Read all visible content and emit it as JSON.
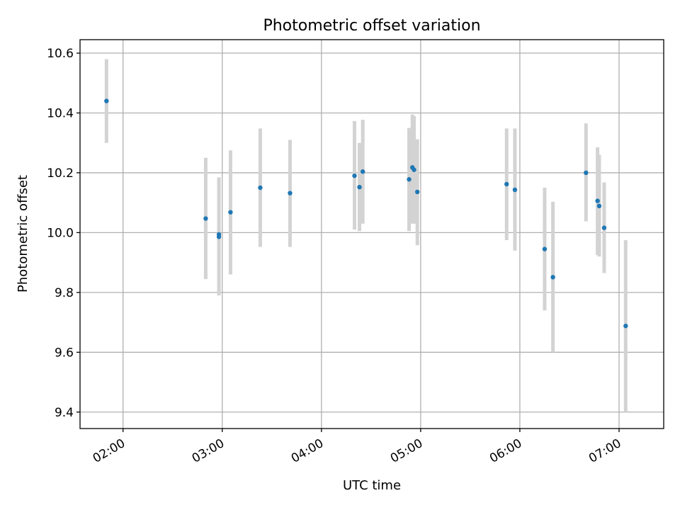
{
  "chart_data": {
    "type": "scatter",
    "title": "Photometric offset variation",
    "xlabel": "UTC time",
    "ylabel": "Photometric offset",
    "x_ticks": [
      "02:00",
      "03:00",
      "04:00",
      "05:00",
      "06:00",
      "07:00"
    ],
    "y_ticks": [
      "9.4",
      "9.6",
      "9.8",
      "10.0",
      "10.2",
      "10.4",
      "10.6"
    ],
    "xlim": [
      "01:34",
      "07:27"
    ],
    "ylim": [
      9.345,
      10.645
    ],
    "grid": true,
    "marker_color": "#1f77b4",
    "errorbar_color": "#d3d3d3",
    "points": [
      {
        "time": "01:50",
        "value": 10.44,
        "low": 10.3,
        "high": 10.58
      },
      {
        "time": "02:50",
        "value": 10.047,
        "low": 9.845,
        "high": 10.25
      },
      {
        "time": "02:58",
        "value": 9.994,
        "low": 9.79,
        "high": 10.185
      },
      {
        "time": "02:58",
        "value": 9.986,
        "low": 9.8,
        "high": 10.18
      },
      {
        "time": "03:05",
        "value": 10.068,
        "low": 9.86,
        "high": 10.275
      },
      {
        "time": "03:23",
        "value": 10.15,
        "low": 9.952,
        "high": 10.348
      },
      {
        "time": "03:41",
        "value": 10.132,
        "low": 9.952,
        "high": 10.31
      },
      {
        "time": "04:20",
        "value": 10.19,
        "low": 10.01,
        "high": 10.373
      },
      {
        "time": "04:23",
        "value": 10.152,
        "low": 10.005,
        "high": 10.3
      },
      {
        "time": "04:25",
        "value": 10.204,
        "low": 10.03,
        "high": 10.377
      },
      {
        "time": "04:53",
        "value": 10.178,
        "low": 10.005,
        "high": 10.35
      },
      {
        "time": "04:55",
        "value": 10.218,
        "low": 10.03,
        "high": 10.395
      },
      {
        "time": "04:56",
        "value": 10.21,
        "low": 10.03,
        "high": 10.39
      },
      {
        "time": "04:58",
        "value": 10.136,
        "low": 9.958,
        "high": 10.312
      },
      {
        "time": "05:52",
        "value": 10.162,
        "low": 9.975,
        "high": 10.348
      },
      {
        "time": "05:57",
        "value": 10.143,
        "low": 9.94,
        "high": 10.348
      },
      {
        "time": "06:15",
        "value": 9.945,
        "low": 9.74,
        "high": 10.15
      },
      {
        "time": "06:20",
        "value": 9.851,
        "low": 9.6,
        "high": 10.103
      },
      {
        "time": "06:40",
        "value": 10.2,
        "low": 10.038,
        "high": 10.365
      },
      {
        "time": "06:47",
        "value": 10.106,
        "low": 9.925,
        "high": 10.285
      },
      {
        "time": "06:48",
        "value": 10.089,
        "low": 9.92,
        "high": 10.26
      },
      {
        "time": "06:51",
        "value": 10.016,
        "low": 9.865,
        "high": 10.168
      },
      {
        "time": "07:04",
        "value": 9.688,
        "low": 9.4,
        "high": 9.975
      }
    ]
  }
}
